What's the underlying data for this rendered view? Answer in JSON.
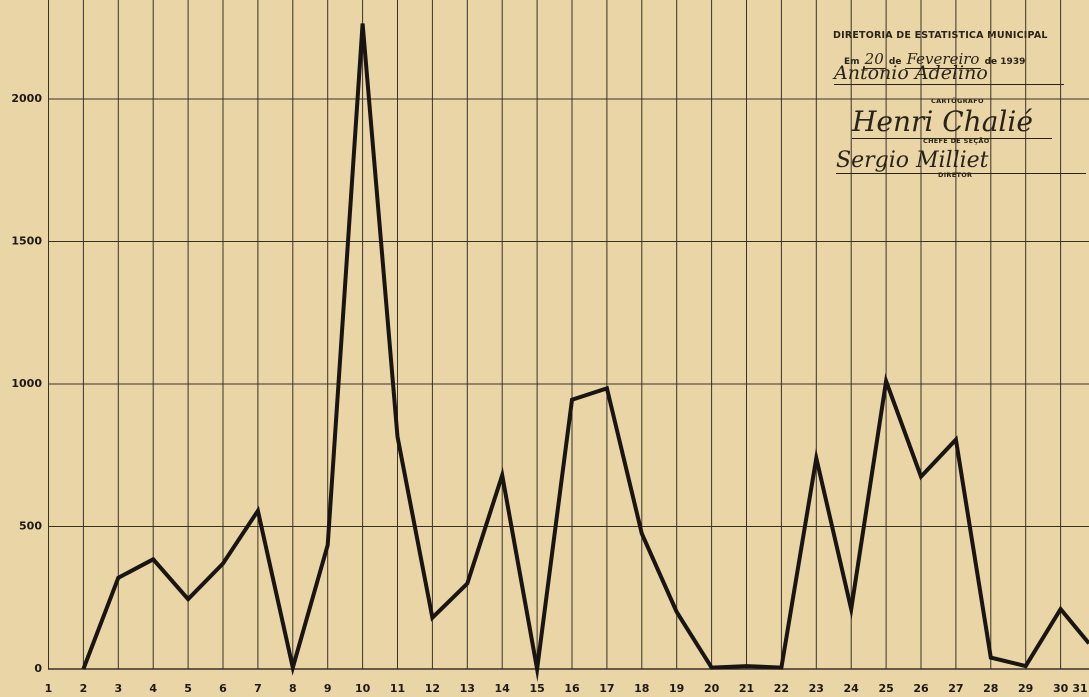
{
  "chart_data": {
    "type": "line",
    "title": "",
    "xlabel": "",
    "ylabel": "",
    "x": [
      1,
      2,
      3,
      4,
      5,
      6,
      7,
      8,
      9,
      10,
      11,
      12,
      13,
      14,
      15,
      16,
      17,
      18,
      19,
      20,
      21,
      22,
      23,
      24,
      25,
      26,
      27,
      28,
      29,
      30,
      31
    ],
    "x_tick_labels": [
      "1",
      "2",
      "3",
      "4",
      "5",
      "6",
      "7",
      "8",
      "9",
      "10",
      "11",
      "12",
      "13",
      "14",
      "15",
      "16",
      "17",
      "18",
      "19",
      "20",
      "21",
      "22",
      "23",
      "24",
      "25",
      "26",
      "27",
      "28",
      "29",
      "30",
      "31"
    ],
    "series": [
      {
        "values": [
          null,
          0,
          320,
          385,
          245,
          370,
          555,
          5,
          435,
          2265,
          815,
          180,
          300,
          680,
          0,
          945,
          985,
          475,
          200,
          5,
          10,
          5,
          740,
          210,
          1010,
          675,
          805,
          40,
          10,
          210,
          90
        ]
      }
    ],
    "y_ticks": [
      0,
      500,
      1000,
      1500,
      2000
    ],
    "y_tick_labels": [
      "0",
      "500",
      "1000",
      "1500",
      "2000"
    ],
    "ylim": [
      0,
      2300
    ],
    "grid": true,
    "line_color": "#1a1512"
  },
  "stamp": {
    "org": "DIRETORIA DE ESTATISTICA MUNICIPAL",
    "date_prefix": "Em",
    "date_day": "20",
    "date_mid": "de",
    "date_month": "Fevereiro",
    "date_suffix": "de 1939",
    "signature_1": "Antonio Adelino",
    "role_1": "CARTÓGRAFO",
    "signature_2": "Henri Chalié",
    "role_2": "CHEFE DE SEÇÃO",
    "signature_3": "Sergio Milliet",
    "role_3": "DIRETOR"
  }
}
